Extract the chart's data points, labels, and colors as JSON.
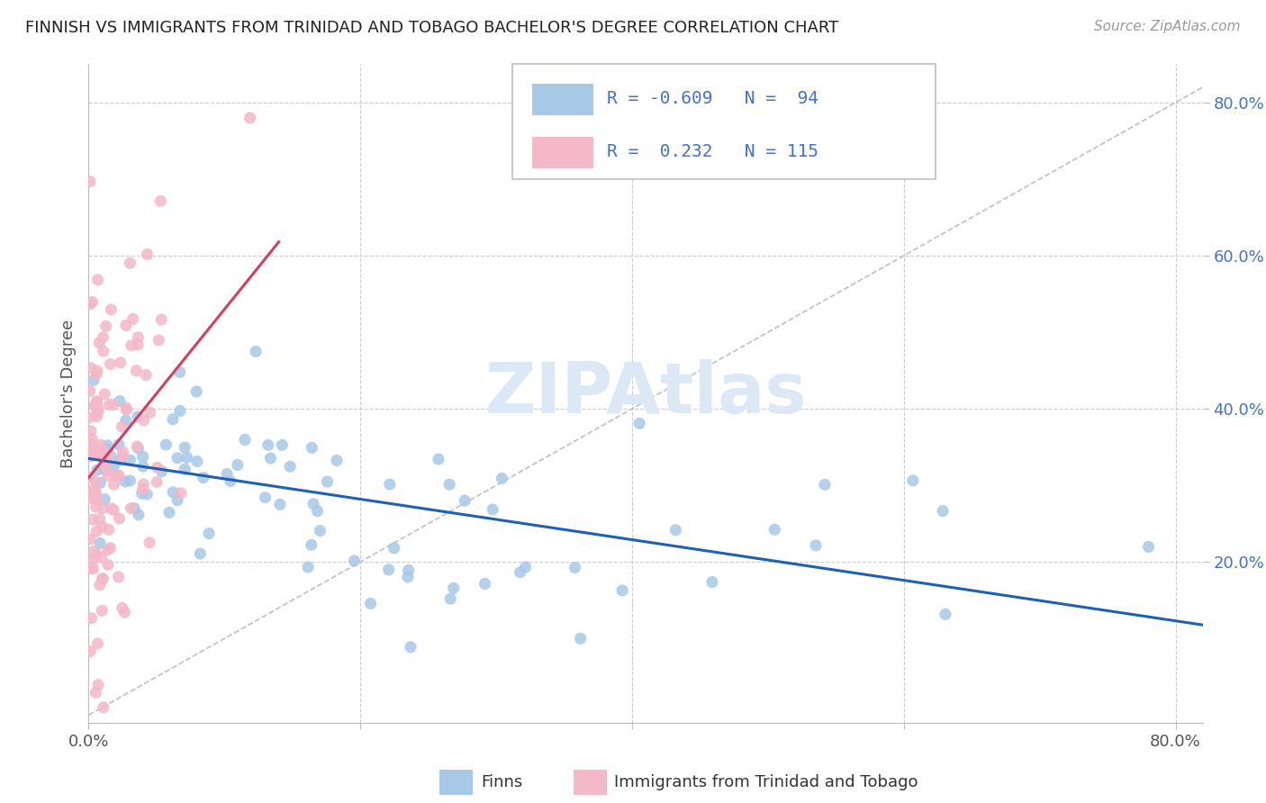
{
  "title": "FINNISH VS IMMIGRANTS FROM TRINIDAD AND TOBAGO BACHELOR'S DEGREE CORRELATION CHART",
  "source": "Source: ZipAtlas.com",
  "ylabel": "Bachelor's Degree",
  "blue_color": "#a8c8e8",
  "pink_color": "#f4b8c8",
  "blue_line_color": "#2060b0",
  "pink_line_color": "#d04060",
  "watermark_color": "#dce8f5",
  "blue_R": -0.609,
  "blue_N": 94,
  "pink_R": 0.232,
  "pink_N": 115,
  "blue_seed": 42,
  "pink_seed": 77,
  "blue_intercept": 0.335,
  "blue_slope": -0.265,
  "pink_intercept": 0.31,
  "pink_slope": 2.2,
  "xlim": [
    0.0,
    0.82
  ],
  "ylim": [
    -0.01,
    0.85
  ]
}
